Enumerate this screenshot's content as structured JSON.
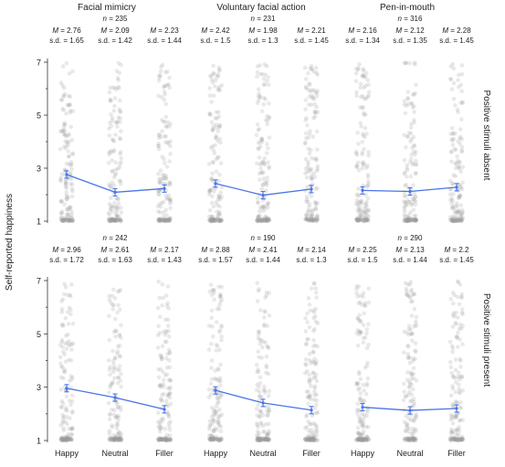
{
  "figure": {
    "ylabel": "Self-reported happiness",
    "col_titles": [
      "Facial mimicry",
      "Voluntary facial action",
      "Pen-in-mouth"
    ],
    "row_labels": [
      "Positive stimuli absent",
      "Positive stimuli present"
    ],
    "categories": [
      "Happy",
      "Neutral",
      "Filler"
    ],
    "yticks": [
      1,
      3,
      5,
      7
    ],
    "ylim": [
      1,
      7
    ],
    "colors": {
      "line": "#4a74e8",
      "dots": "#9a9a9a"
    },
    "stat_labels": {
      "n": "n = ",
      "mean": "M = ",
      "sd": "s.d. = "
    }
  },
  "chart_data": [
    {
      "type": "line",
      "row": 0,
      "col": 0,
      "title": "Facial mimicry",
      "n": "235",
      "categories": [
        "Happy",
        "Neutral",
        "Filler"
      ],
      "values": [
        2.76,
        2.09,
        2.23
      ],
      "sd": [
        1.65,
        1.42,
        1.44
      ]
    },
    {
      "type": "line",
      "row": 0,
      "col": 1,
      "title": "Voluntary facial action",
      "n": "231",
      "categories": [
        "Happy",
        "Neutral",
        "Filler"
      ],
      "values": [
        2.42,
        1.98,
        2.21
      ],
      "sd": [
        1.5,
        1.3,
        1.45
      ]
    },
    {
      "type": "line",
      "row": 0,
      "col": 2,
      "title": "Pen-in-mouth",
      "n": "316",
      "categories": [
        "Happy",
        "Neutral",
        "Filler"
      ],
      "values": [
        2.16,
        2.12,
        2.28
      ],
      "sd": [
        1.34,
        1.35,
        1.45
      ]
    },
    {
      "type": "line",
      "row": 1,
      "col": 0,
      "n": "242",
      "categories": [
        "Happy",
        "Neutral",
        "Filler"
      ],
      "values": [
        2.96,
        2.61,
        2.17
      ],
      "sd": [
        1.72,
        1.63,
        1.43
      ]
    },
    {
      "type": "line",
      "row": 1,
      "col": 1,
      "n": "190",
      "categories": [
        "Happy",
        "Neutral",
        "Filler"
      ],
      "values": [
        2.88,
        2.41,
        2.14
      ],
      "sd": [
        1.57,
        1.44,
        1.3
      ]
    },
    {
      "type": "line",
      "row": 1,
      "col": 2,
      "n": "290",
      "categories": [
        "Happy",
        "Neutral",
        "Filler"
      ],
      "values": [
        2.25,
        2.13,
        2.2
      ],
      "sd": [
        1.5,
        1.44,
        1.45
      ]
    }
  ]
}
